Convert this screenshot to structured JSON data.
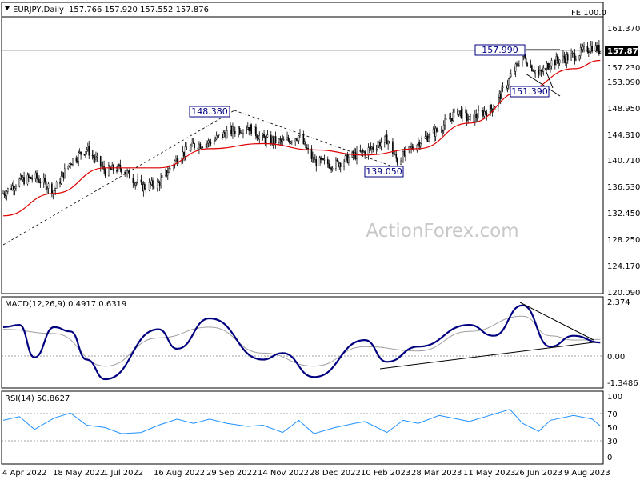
{
  "header": {
    "symbol": "EURJPY,Daily",
    "ohlc": "157.766 157.920 157.552 157.876",
    "fe_label": "FE 100.0"
  },
  "watermark": "ActionForex.com",
  "colors": {
    "candles": "#000000",
    "ma_line": "#e00000",
    "macd_line": "#000080",
    "macd_signal": "#a0a0a0",
    "rsi_line": "#1e90ff",
    "trendlines": "#000000",
    "price_tag_bg": "#000000"
  },
  "price_panel": {
    "y_ticks": [
      "161.370",
      "157.230",
      "153.090",
      "148.950",
      "144.810",
      "140.710",
      "136.530",
      "132.450",
      "128.250",
      "124.170",
      "120.090"
    ],
    "current_price": "157.876",
    "annotations": [
      "157.990",
      "151.390",
      "148.380",
      "139.050"
    ]
  },
  "macd_panel": {
    "label": "MACD(12,26,9) 0.4917 0.6319",
    "y_ticks": [
      "2.374",
      "0.00",
      "-1.3486"
    ]
  },
  "rsi_panel": {
    "label": "RSI(14) 50.8627",
    "y_ticks": [
      "100",
      "70",
      "50",
      "30",
      "0"
    ]
  },
  "x_axis": {
    "labels": [
      "4 Apr 2022",
      "18 May 2022",
      "1 Jul 2022",
      "16 Aug 2022",
      "29 Sep 2022",
      "14 Nov 2022",
      "28 Dec 2022",
      "10 Feb 2023",
      "28 Mar 2023",
      "11 May 2023",
      "26 Jun 2023",
      "9 Aug 2023"
    ]
  },
  "chart_data": [
    {
      "type": "candlestick",
      "title": "EURJPY,Daily",
      "x_axis": [
        "4 Apr 2022",
        "18 May 2022",
        "1 Jul 2022",
        "16 Aug 2022",
        "29 Sep 2022",
        "14 Nov 2022",
        "28 Dec 2022",
        "10 Feb 2023",
        "28 Mar 2023",
        "11 May 2023",
        "26 Jun 2023",
        "9 Aug 2023"
      ],
      "ylim": [
        120.09,
        161.37
      ],
      "close_series": [
        [
          "4 Apr 2022",
          135.5
        ],
        [
          "18 Apr 2022",
          137.5
        ],
        [
          "2 May 2022",
          138.0
        ],
        [
          "18 May 2022",
          136.0
        ],
        [
          "1 Jun 2022",
          140.5
        ],
        [
          "15 Jun 2022",
          142.5
        ],
        [
          "1 Jul 2022",
          139.0
        ],
        [
          "15 Jul 2022",
          139.5
        ],
        [
          "1 Aug 2022",
          136.5
        ],
        [
          "16 Aug 2022",
          137.0
        ],
        [
          "1 Sep 2022",
          141.0
        ],
        [
          "15 Sep 2022",
          143.0
        ],
        [
          "29 Sep 2022",
          143.5
        ],
        [
          "14 Oct 2022",
          145.0
        ],
        [
          "1 Nov 2022",
          146.0
        ],
        [
          "14 Nov 2022",
          144.0
        ],
        [
          "1 Dec 2022",
          143.5
        ],
        [
          "15 Dec 2022",
          144.5
        ],
        [
          "28 Dec 2022",
          140.5
        ],
        [
          "15 Jan 2023",
          140.0
        ],
        [
          "1 Feb 2023",
          141.5
        ],
        [
          "10 Feb 2023",
          142.0
        ],
        [
          "1 Mar 2023",
          144.0
        ],
        [
          "10 Mar 2023",
          140.5
        ],
        [
          "28 Mar 2023",
          143.5
        ],
        [
          "15 Apr 2023",
          145.5
        ],
        [
          "1 May 2023",
          148.5
        ],
        [
          "11 May 2023",
          147.0
        ],
        [
          "1 Jun 2023",
          149.0
        ],
        [
          "15 Jun 2023",
          153.5
        ],
        [
          "26 Jun 2023",
          157.0
        ],
        [
          "10 Jul 2023",
          154.0
        ],
        [
          "20 Jul 2023",
          156.0
        ],
        [
          "9 Aug 2023",
          157.0
        ],
        [
          "25 Aug 2023",
          158.5
        ],
        [
          "1 Sep 2023",
          157.876
        ]
      ],
      "ma_series": [
        [
          "4 Apr 2022",
          132.0
        ],
        [
          "18 May 2022",
          135.5
        ],
        [
          "1 Jul 2022",
          139.5
        ],
        [
          "16 Aug 2022",
          139.5
        ],
        [
          "29 Sep 2022",
          142.5
        ],
        [
          "14 Nov 2022",
          143.3
        ],
        [
          "28 Dec 2022",
          142.3
        ],
        [
          "10 Feb 2023",
          141.5
        ],
        [
          "28 Mar 2023",
          142.5
        ],
        [
          "11 May 2023",
          146.5
        ],
        [
          "26 Jun 2023",
          151.5
        ],
        [
          "9 Aug 2023",
          155.0
        ],
        [
          "1 Sep 2023",
          156.3
        ]
      ],
      "annotations": {
        "high_label": 157.99,
        "low_label": 151.39,
        "peak_label": 148.38,
        "trough_label": 139.05,
        "current_price": 157.876,
        "fe_level": "FE 100.0"
      }
    },
    {
      "type": "line",
      "title": "MACD(12,26,9) 0.4917 0.6319",
      "ylim": [
        -1.3486,
        2.374
      ],
      "macd": [
        [
          "4 Apr 2022",
          1.2
        ],
        [
          "18 Apr 2022",
          1.3
        ],
        [
          "1 May 2022",
          -0.2
        ],
        [
          "18 May 2022",
          1.2
        ],
        [
          "1 Jun 2022",
          1.0
        ],
        [
          "15 Jun 2022",
          -0.3
        ],
        [
          "1 Jul 2022",
          -1.2
        ],
        [
          "16 Aug 2022",
          1.1
        ],
        [
          "1 Sep 2022",
          0.2
        ],
        [
          "29 Sep 2022",
          1.6
        ],
        [
          "14 Nov 2022",
          -0.3
        ],
        [
          "1 Dec 2022",
          0.0
        ],
        [
          "28 Dec 2022",
          -1.1
        ],
        [
          "10 Feb 2023",
          0.6
        ],
        [
          "1 Mar 2023",
          -0.4
        ],
        [
          "28 Mar 2023",
          0.3
        ],
        [
          "11 May 2023",
          1.3
        ],
        [
          "1 Jun 2023",
          0.8
        ],
        [
          "26 Jun 2023",
          2.2
        ],
        [
          "20 Jul 2023",
          0.3
        ],
        [
          "9 Aug 2023",
          0.8
        ],
        [
          "1 Sep 2023",
          0.49
        ]
      ],
      "signal": [
        [
          "4 Apr 2022",
          1.1
        ],
        [
          "18 May 2022",
          0.9
        ],
        [
          "1 Jul 2022",
          -0.6
        ],
        [
          "16 Aug 2022",
          0.7
        ],
        [
          "29 Sep 2022",
          1.2
        ],
        [
          "14 Nov 2022",
          0.0
        ],
        [
          "28 Dec 2022",
          -0.6
        ],
        [
          "10 Feb 2023",
          0.3
        ],
        [
          "28 Mar 2023",
          0.1
        ],
        [
          "11 May 2023",
          1.0
        ],
        [
          "26 Jun 2023",
          1.7
        ],
        [
          "20 Jul 2023",
          0.8
        ],
        [
          "9 Aug 2023",
          0.6
        ],
        [
          "1 Sep 2023",
          0.63
        ]
      ]
    },
    {
      "type": "line",
      "title": "RSI(14) 50.8627",
      "ylim": [
        0,
        100
      ],
      "levels": [
        30,
        70
      ],
      "rsi": [
        [
          "4 Apr 2022",
          60
        ],
        [
          "18 Apr 2022",
          66
        ],
        [
          "1 May 2022",
          45
        ],
        [
          "18 May 2022",
          64
        ],
        [
          "1 Jun 2022",
          72
        ],
        [
          "15 Jun 2022",
          52
        ],
        [
          "1 Jul 2022",
          48
        ],
        [
          "15 Jul 2022",
          38
        ],
        [
          "1 Aug 2022",
          40
        ],
        [
          "16 Aug 2022",
          52
        ],
        [
          "1 Sep 2022",
          62
        ],
        [
          "15 Sep 2022",
          55
        ],
        [
          "29 Sep 2022",
          62
        ],
        [
          "14 Oct 2022",
          55
        ],
        [
          "1 Nov 2022",
          50
        ],
        [
          "14 Nov 2022",
          52
        ],
        [
          "1 Dec 2022",
          40
        ],
        [
          "15 Dec 2022",
          60
        ],
        [
          "28 Dec 2022",
          38
        ],
        [
          "15 Jan 2023",
          48
        ],
        [
          "1 Feb 2023",
          55
        ],
        [
          "10 Feb 2023",
          58
        ],
        [
          "1 Mar 2023",
          40
        ],
        [
          "15 Mar 2023",
          60
        ],
        [
          "28 Mar 2023",
          55
        ],
        [
          "15 Apr 2023",
          68
        ],
        [
          "1 May 2023",
          62
        ],
        [
          "11 May 2023",
          58
        ],
        [
          "1 Jun 2023",
          70
        ],
        [
          "15 Jun 2023",
          78
        ],
        [
          "26 Jun 2023",
          55
        ],
        [
          "10 Jul 2023",
          42
        ],
        [
          "20 Jul 2023",
          60
        ],
        [
          "9 Aug 2023",
          68
        ],
        [
          "25 Aug 2023",
          62
        ],
        [
          "1 Sep 2023",
          50.86
        ]
      ]
    }
  ]
}
